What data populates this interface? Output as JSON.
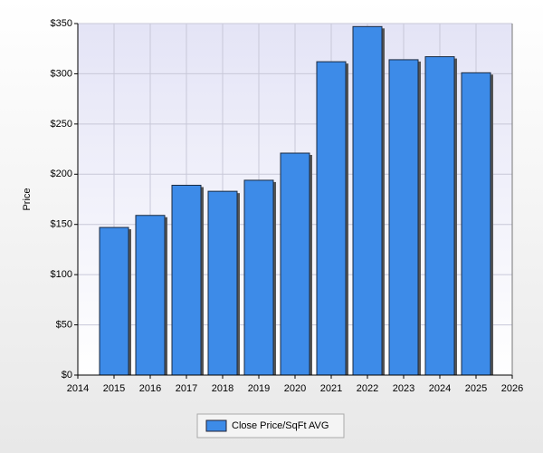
{
  "chart_data": {
    "type": "bar",
    "y_axis_label": "Price",
    "x": [
      2015,
      2016,
      2017,
      2018,
      2019,
      2020,
      2021,
      2022,
      2023,
      2024,
      2025
    ],
    "series": [
      {
        "name": "Close Price/SqFt AVG",
        "color": "#3d8be8",
        "values": [
          147,
          159,
          189,
          183,
          194,
          221,
          312,
          347,
          314,
          317,
          301
        ]
      }
    ],
    "xlim": [
      2014,
      2026
    ],
    "xticks": [
      2014,
      2015,
      2016,
      2017,
      2018,
      2019,
      2020,
      2021,
      2022,
      2023,
      2024,
      2025,
      2026
    ],
    "ylim": [
      0,
      350
    ],
    "yticks": [
      {
        "value": 0,
        "label": "$0"
      },
      {
        "value": 50,
        "label": "$50"
      },
      {
        "value": 100,
        "label": "$100"
      },
      {
        "value": 150,
        "label": "$150"
      },
      {
        "value": 200,
        "label": "$200"
      },
      {
        "value": 250,
        "label": "$250"
      },
      {
        "value": 300,
        "label": "$300"
      },
      {
        "value": 350,
        "label": "$350"
      }
    ],
    "grid": true,
    "legend": "bottom"
  }
}
